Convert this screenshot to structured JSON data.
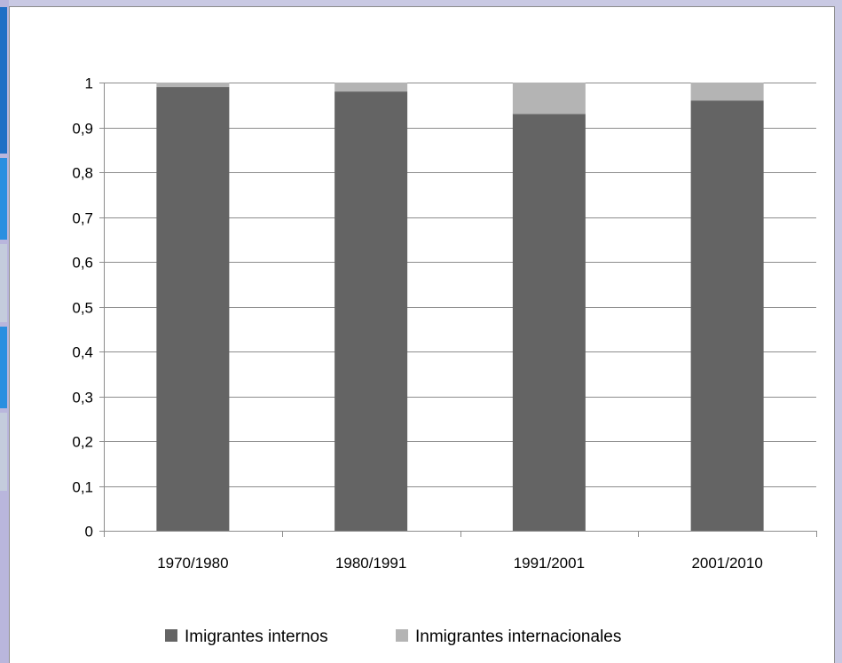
{
  "colors": {
    "internal": "#646464",
    "international": "#b4b4b4",
    "grid": "#8c8c8c",
    "background": "#ffffff"
  },
  "chart_data": {
    "type": "bar",
    "stacked": true,
    "categories": [
      "1970/1980",
      "1980/1991",
      "1991/2001",
      "2001/2010"
    ],
    "series": [
      {
        "name": "Imigrantes internos",
        "values": [
          0.99,
          0.98,
          0.93,
          0.96
        ]
      },
      {
        "name": "Inmigrantes internacionales",
        "values": [
          0.01,
          0.02,
          0.07,
          0.04
        ]
      }
    ],
    "yticks": [
      "0",
      "0,1",
      "0,2",
      "0,3",
      "0,4",
      "0,5",
      "0,6",
      "0,7",
      "0,8",
      "0,9",
      "1"
    ],
    "ylim": [
      0,
      1
    ],
    "grid": true,
    "legend": "bottom"
  }
}
